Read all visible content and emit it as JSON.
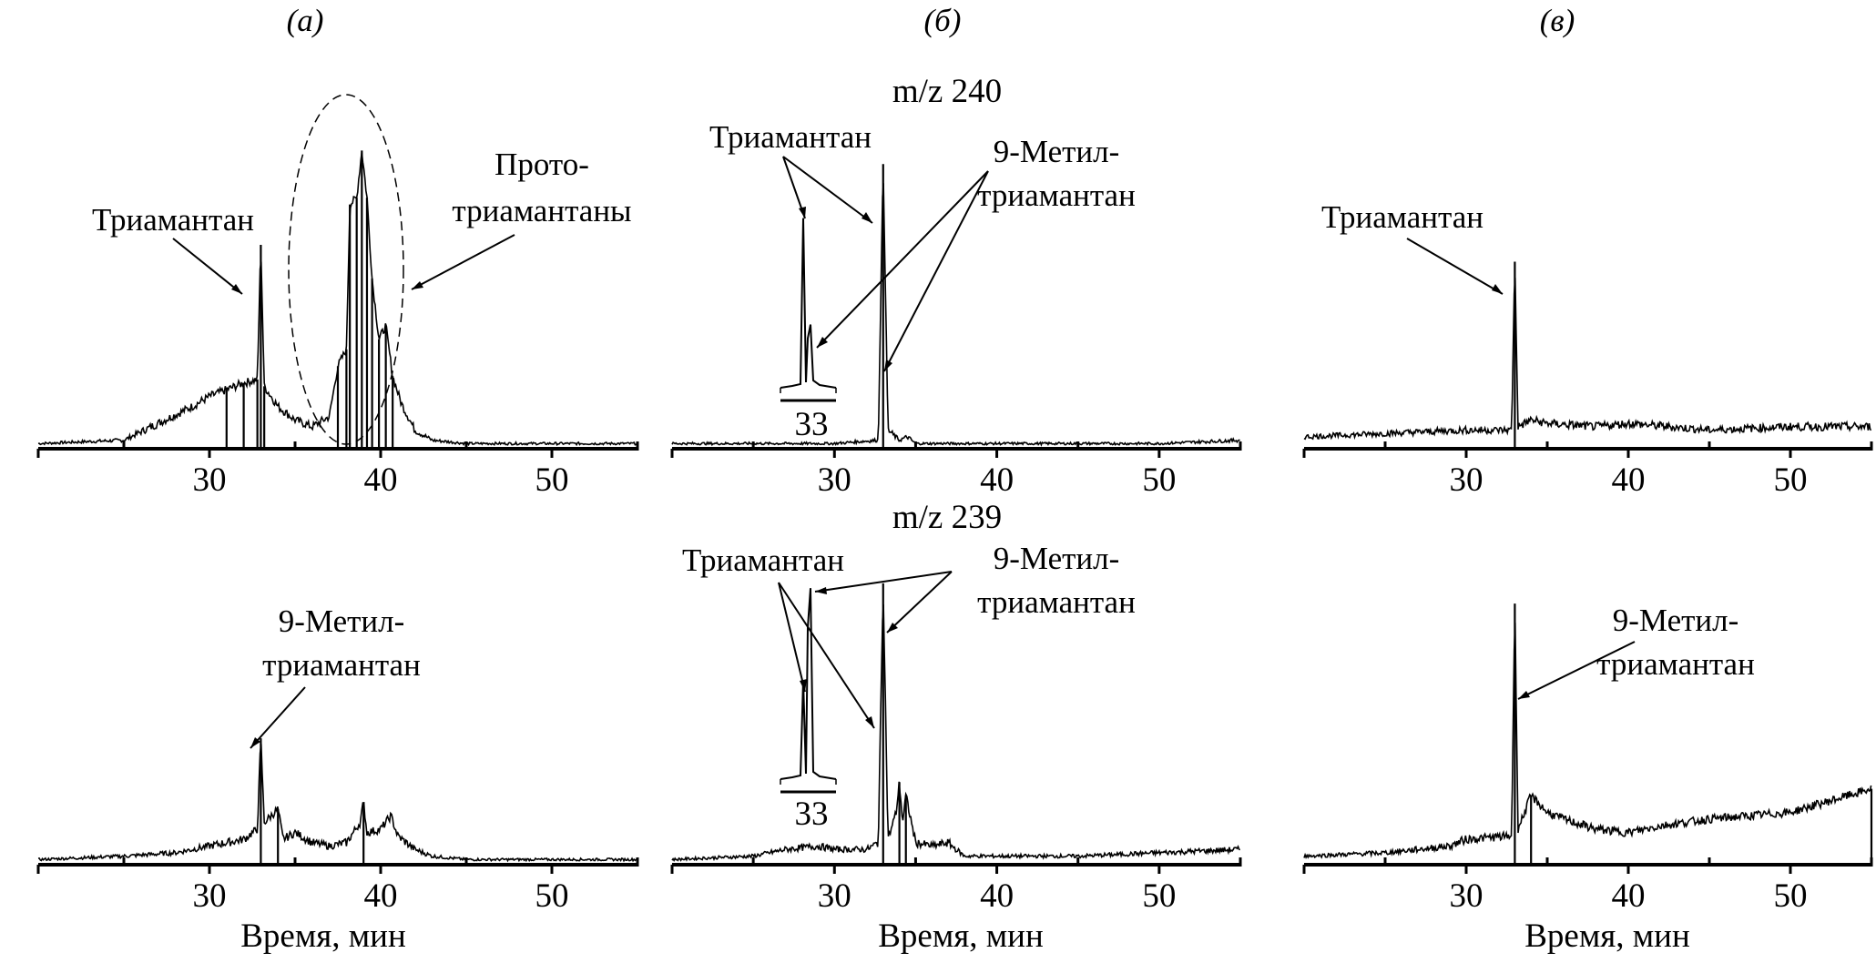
{
  "figure": {
    "panel_letters": [
      "(а)",
      "(б)",
      "(в)"
    ],
    "mz_labels": [
      "m/z 240",
      "m/z 239"
    ]
  },
  "chart_data": [
    {
      "id": "a-top",
      "type": "line",
      "panel": "(а)",
      "mz": "",
      "xlabel": "",
      "xlim": [
        20,
        55
      ],
      "xticks": [
        30,
        40,
        50
      ],
      "series": [
        {
          "x": [
            20,
            25,
            27,
            29,
            30,
            31,
            32,
            32.8,
            33,
            33.2,
            34,
            35,
            36,
            37,
            37.5,
            38,
            38.2,
            38.6,
            38.9,
            39.2,
            39.5,
            39.9,
            40.3,
            40.7,
            41.2,
            42,
            43,
            45,
            50,
            55
          ],
          "y": [
            0.01,
            0.02,
            0.07,
            0.12,
            0.15,
            0.17,
            0.19,
            0.2,
            0.6,
            0.18,
            0.12,
            0.08,
            0.06,
            0.09,
            0.24,
            0.29,
            0.72,
            0.74,
            0.88,
            0.74,
            0.5,
            0.32,
            0.36,
            0.21,
            0.13,
            0.05,
            0.02,
            0.01,
            0.01,
            0.01
          ]
        }
      ],
      "annotations": [
        {
          "text": "Триамантан",
          "x": 33
        },
        {
          "text": "Прото-",
          "x": 39
        },
        {
          "text": "триамантаны",
          "x": 39
        }
      ]
    },
    {
      "id": "a-bottom",
      "type": "line",
      "panel": "(а)",
      "mz": "",
      "xlabel": "Время, мин",
      "xlim": [
        20,
        55
      ],
      "xticks": [
        30,
        40,
        50
      ],
      "series": [
        {
          "x": [
            20,
            25,
            28,
            30,
            31,
            32,
            32.8,
            33,
            33.2,
            34,
            34.3,
            35,
            36,
            37,
            38,
            38.8,
            39,
            39.2,
            40,
            40.6,
            41,
            42,
            43,
            45,
            50,
            55
          ],
          "y": [
            0.01,
            0.02,
            0.03,
            0.05,
            0.06,
            0.07,
            0.1,
            0.37,
            0.12,
            0.16,
            0.07,
            0.09,
            0.06,
            0.05,
            0.06,
            0.12,
            0.18,
            0.09,
            0.1,
            0.14,
            0.08,
            0.04,
            0.02,
            0.01,
            0.01,
            0.01
          ]
        }
      ],
      "annotations": [
        {
          "text": "9-Метил-",
          "x": 33
        },
        {
          "text": "триамантан",
          "x": 33
        }
      ]
    },
    {
      "id": "b-top",
      "type": "line",
      "panel": "(б)",
      "mz": "m/z 240",
      "xlabel": "",
      "xlim": [
        20,
        55
      ],
      "xticks": [
        30,
        40,
        50
      ],
      "series": [
        {
          "x": [
            20,
            25,
            30,
            32.7,
            33,
            33.3,
            34,
            34.5,
            35,
            40,
            45,
            50,
            55
          ],
          "y": [
            0.01,
            0.01,
            0.01,
            0.02,
            0.84,
            0.05,
            0.02,
            0.03,
            0.01,
            0.01,
            0.01,
            0.01,
            0.02
          ]
        }
      ],
      "inset": {
        "label": "33",
        "peaks": [
          0.74,
          0.29
        ]
      },
      "annotations": [
        {
          "text": "Триамантан",
          "x": 33
        },
        {
          "text": "9-Метил-",
          "x": 33.2
        },
        {
          "text": "триамантан",
          "x": 33.2
        }
      ]
    },
    {
      "id": "b-bottom",
      "type": "line",
      "panel": "(б)",
      "mz": "m/z 239",
      "xlabel": "Время, мин",
      "xlim": [
        20,
        55
      ],
      "xticks": [
        30,
        40,
        50
      ],
      "series": [
        {
          "x": [
            20,
            25,
            27,
            29,
            30,
            32,
            32.7,
            33,
            33.3,
            33.8,
            34,
            34.2,
            34.4,
            35,
            36,
            37,
            38,
            40,
            45,
            50,
            55
          ],
          "y": [
            0.01,
            0.02,
            0.04,
            0.05,
            0.04,
            0.04,
            0.06,
            0.83,
            0.07,
            0.15,
            0.24,
            0.12,
            0.2,
            0.06,
            0.05,
            0.06,
            0.02,
            0.02,
            0.02,
            0.03,
            0.04
          ]
        }
      ],
      "inset": {
        "label": "33",
        "peaks": [
          0.44,
          0.83
        ]
      },
      "annotations": [
        {
          "text": "Триамантан",
          "x": 33
        },
        {
          "text": "9-Метил-",
          "x": 33
        },
        {
          "text": "триамантан",
          "x": 33
        }
      ]
    },
    {
      "id": "c-top",
      "type": "line",
      "panel": "(в)",
      "mz": "",
      "xlabel": "",
      "xlim": [
        20,
        55
      ],
      "xticks": [
        30,
        40,
        50
      ],
      "series": [
        {
          "x": [
            20,
            25,
            30,
            32.8,
            33,
            33.2,
            34,
            35,
            38,
            40,
            45,
            50,
            55
          ],
          "y": [
            0.03,
            0.04,
            0.05,
            0.05,
            0.55,
            0.06,
            0.08,
            0.07,
            0.06,
            0.07,
            0.05,
            0.06,
            0.06
          ]
        }
      ],
      "annotations": [
        {
          "text": "Триамантан",
          "x": 33
        }
      ]
    },
    {
      "id": "c-bottom",
      "type": "line",
      "panel": "(в)",
      "mz": "",
      "xlabel": "Время, мин",
      "xlim": [
        20,
        55
      ],
      "xticks": [
        30,
        40,
        50
      ],
      "series": [
        {
          "x": [
            20,
            25,
            29,
            30,
            32.8,
            33,
            33.2,
            34,
            35,
            36,
            38,
            40,
            42,
            45,
            50,
            55
          ],
          "y": [
            0.02,
            0.03,
            0.05,
            0.07,
            0.08,
            0.77,
            0.1,
            0.2,
            0.15,
            0.13,
            0.1,
            0.09,
            0.11,
            0.13,
            0.15,
            0.22
          ]
        }
      ],
      "annotations": [
        {
          "text": "9-Метил-",
          "x": 33
        },
        {
          "text": "триамантан",
          "x": 33
        }
      ]
    }
  ]
}
